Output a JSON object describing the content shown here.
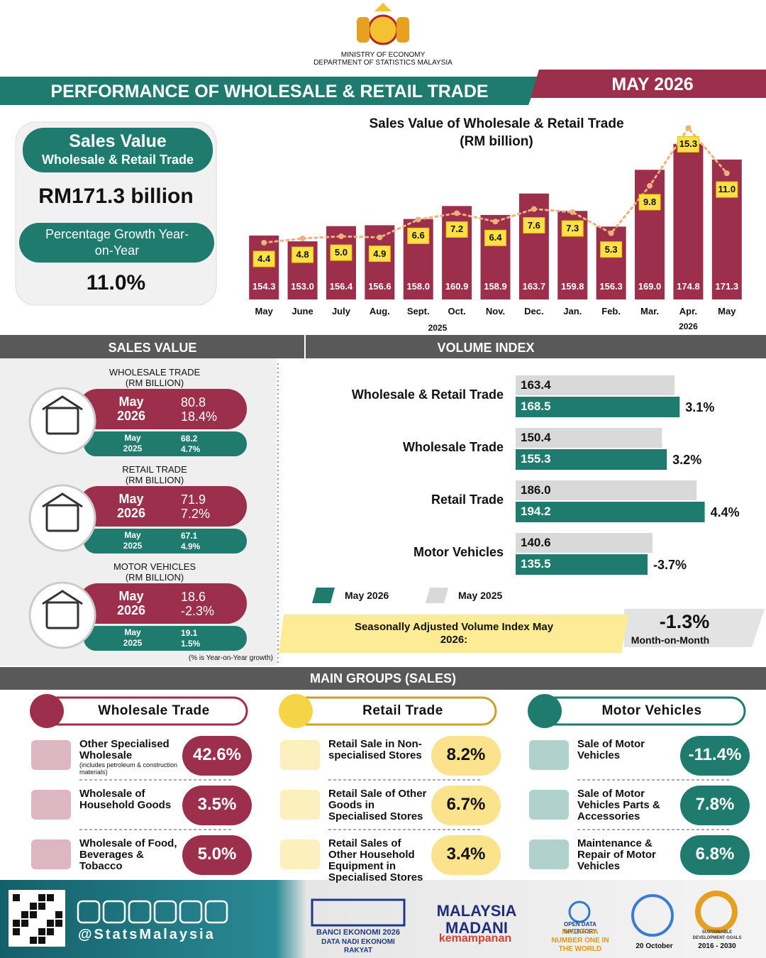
{
  "header": {
    "ministry": "MINISTRY OF ECONOMY",
    "department": "DEPARTMENT OF STATISTICS MALAYSIA",
    "title": "PERFORMANCE OF WHOLESALE & RETAIL TRADE",
    "period": "MAY 2026"
  },
  "summary": {
    "title": "Sales Value",
    "subtitle": "Wholesale & Retail Trade",
    "amount": "RM171.3 billion",
    "growth_title": "Percentage Growth Year-on-Year",
    "growth": "11.0%"
  },
  "chart_data": [
    {
      "type": "bar",
      "title": "Sales Value of Wholesale & Retail Trade",
      "subtitle": "(RM billion)",
      "categories": [
        "May",
        "June",
        "July",
        "Aug.",
        "Sept.",
        "Oct.",
        "Nov.",
        "Dec.",
        "Jan.",
        "Feb.",
        "Mar.",
        "Apr.",
        "May"
      ],
      "year_labels": [
        "2025",
        "2026"
      ],
      "series": [
        {
          "type": "bar",
          "color": "#9b2f4c",
          "values": [
            154.3,
            153.0,
            156.4,
            156.6,
            158.0,
            160.9,
            158.9,
            163.7,
            159.8,
            156.3,
            169.0,
            174.8,
            171.3
          ],
          "value_labels": [
            "154.3",
            "153.0",
            "156.4",
            "156.6",
            "158.0",
            "160.9",
            "158.9",
            "163.7",
            "159.8",
            "156.3",
            "169.0",
            "174.8",
            "171.3"
          ]
        },
        {
          "type": "line",
          "axis": "y2",
          "color": "#f0b07a",
          "values": [
            4.4,
            4.8,
            5.0,
            4.9,
            6.6,
            7.2,
            6.4,
            7.6,
            7.3,
            5.3,
            9.8,
            15.3,
            11.0
          ],
          "value_labels": [
            "4.4",
            "4.8",
            "5.0",
            "4.9",
            "6.6",
            "7.2",
            "6.4",
            "7.6",
            "7.3",
            "5.3",
            "9.8",
            "15.3",
            "11.0"
          ]
        }
      ],
      "ylim": [
        140,
        180
      ],
      "y2lim": [
        -1,
        16
      ]
    },
    {
      "type": "hbar",
      "categories": [
        "Wholesale & Retail Trade",
        "Wholesale Trade",
        "Retail Trade",
        "Motor Vehicles"
      ],
      "series": [
        {
          "name": "May 2026",
          "color": "#1e7b6e",
          "values": [
            168.5,
            155.3,
            194.2,
            135.5
          ],
          "value_labels": [
            "168.5",
            "155.3",
            "194.2",
            "135.5"
          ]
        },
        {
          "name": "May 2025",
          "color": "#d9d9d9",
          "values": [
            163.4,
            150.4,
            186.0,
            140.6
          ],
          "value_labels": [
            "163.4",
            "150.4",
            "186.0",
            "140.6"
          ]
        }
      ],
      "growth_labels": [
        "3.1%",
        "3.2%",
        "4.4%",
        "-3.7%"
      ],
      "xlim": [
        0,
        220
      ]
    }
  ],
  "sections": {
    "sales_value": "SALES VALUE",
    "volume_index": "VOLUME INDEX",
    "main_groups": "MAIN GROUPS (SALES)"
  },
  "sales_cards": [
    {
      "title": "WHOLESALE TRADE",
      "unit": "(RM BILLION)",
      "current_period": "May 2026",
      "current_value": "80.8",
      "current_growth": "18.4%",
      "previous_period": "May 2025",
      "previous_value": "68.2",
      "previous_growth": "4.7%"
    },
    {
      "title": "RETAIL TRADE",
      "unit": "(RM BILLION)",
      "current_period": "May 2026",
      "current_value": "71.9",
      "current_growth": "7.2%",
      "previous_period": "May 2025",
      "previous_value": "67.1",
      "previous_growth": "4.9%"
    },
    {
      "title": "MOTOR VEHICLES",
      "unit": "(RM BILLION)",
      "current_period": "May 2026",
      "current_value": "18.6",
      "current_growth": "-2.3%",
      "previous_period": "May 2025",
      "previous_value": "19.1",
      "previous_growth": "1.5%"
    }
  ],
  "footnote": "(% is Year-on-Year growth)",
  "seasonal": {
    "label": "Seasonally Adjusted Volume Index May 2026:",
    "value": "-1.3%",
    "note": "Month-on-Month"
  },
  "main_groups": [
    {
      "title": "Wholesale Trade",
      "color": "#9b2f4c",
      "items": [
        {
          "label": "Other Specialised Wholesale",
          "note": "(includes petroleum & construction materials)",
          "value": "42.6%"
        },
        {
          "label": "Wholesale of Household Goods",
          "value": "3.5%"
        },
        {
          "label": "Wholesale of Food, Beverages & Tobacco",
          "value": "5.0%"
        }
      ]
    },
    {
      "title": "Retail Trade",
      "color": "#f5d547",
      "items": [
        {
          "label": "Retail Sale in Non-specialised Stores",
          "value": "8.2%"
        },
        {
          "label": "Retail Sale of Other Goods in Specialised Stores",
          "value": "6.7%"
        },
        {
          "label": "Retail Sales of Other Household Equipment in Specialised Stores",
          "value": "3.4%"
        }
      ]
    },
    {
      "title": "Motor Vehicles",
      "color": "#1e7b6e",
      "items": [
        {
          "label": "Sale of Motor Vehicles",
          "value": "-11.4%"
        },
        {
          "label": "Sale of Motor Vehicles Parts & Accessories",
          "value": "7.8%"
        },
        {
          "label": "Maintenance & Repair of Motor Vehicles",
          "value": "6.8%"
        }
      ]
    }
  ],
  "footer": {
    "handle": "@StatsMalaysia",
    "logos": [
      "BANCI EKONOMI 2026",
      "DATA NADI EKONOMI RAKYAT",
      "MALAYSIA MADANI",
      "kemampanan",
      "OPEN DATA INVENTORY",
      "MALAYSIA NUMBER ONE IN THE WORLD",
      "20 October",
      "SUSTAINABLE DEVELOPMENT GOALS",
      "2016 - 2030"
    ]
  }
}
